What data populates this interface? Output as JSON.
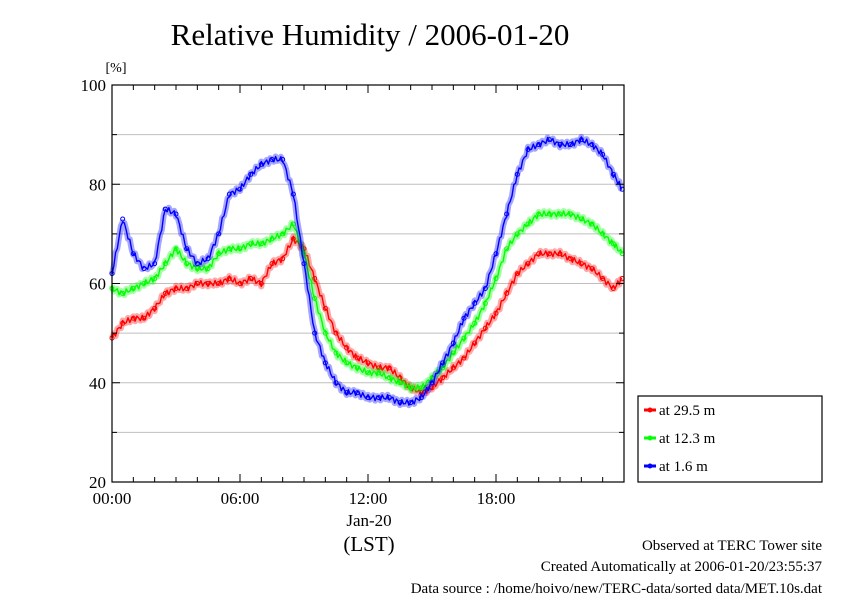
{
  "chart_data": {
    "type": "line",
    "title": "Relative Humidity / 2006-01-20",
    "ylabel_unit": "[%]",
    "xlabel": "(LST)",
    "x_date_label": "Jan-20",
    "xlim": [
      "00:00",
      "24:00"
    ],
    "ylim": [
      20,
      100
    ],
    "x_ticks": [
      {
        "label": "00:00",
        "hour": 0
      },
      {
        "label": "06:00",
        "hour": 6
      },
      {
        "label": "12:00",
        "hour": 12
      },
      {
        "label": "18:00",
        "hour": 18
      }
    ],
    "y_ticks": [
      20,
      40,
      60,
      80,
      100
    ],
    "grid": true,
    "legend_position": "right, lower",
    "x": [
      "00:00",
      "00:30",
      "01:00",
      "01:30",
      "02:00",
      "02:30",
      "03:00",
      "03:30",
      "04:00",
      "04:30",
      "05:00",
      "05:30",
      "06:00",
      "06:30",
      "07:00",
      "07:30",
      "08:00",
      "08:30",
      "09:00",
      "09:30",
      "10:00",
      "10:30",
      "11:00",
      "11:30",
      "12:00",
      "12:30",
      "13:00",
      "13:30",
      "14:00",
      "14:30",
      "15:00",
      "15:30",
      "16:00",
      "16:30",
      "17:00",
      "17:30",
      "18:00",
      "18:30",
      "19:00",
      "19:30",
      "20:00",
      "20:30",
      "21:00",
      "21:30",
      "22:00",
      "22:30",
      "23:00",
      "23:30",
      "23:55"
    ],
    "series": [
      {
        "name": "at 29.5 m",
        "color": "#ff0000",
        "values": [
          49,
          52,
          53,
          53,
          55,
          58,
          59,
          59,
          60,
          60,
          60,
          61,
          60,
          61,
          60,
          64,
          65,
          69,
          67,
          61,
          55,
          50,
          47,
          45,
          44,
          43,
          43,
          41,
          39,
          38,
          39,
          41,
          43,
          45,
          48,
          51,
          54,
          58,
          62,
          64,
          66,
          66,
          66,
          65,
          64,
          63,
          61,
          59,
          61
        ]
      },
      {
        "name": "at 12.3 m",
        "color": "#00ff00",
        "values": [
          59,
          58,
          59,
          60,
          61,
          64,
          67,
          64,
          63,
          63,
          66,
          67,
          67,
          68,
          68,
          69,
          70,
          72,
          66,
          57,
          50,
          46,
          44,
          43,
          42,
          42,
          41,
          40,
          39,
          39,
          41,
          43,
          46,
          49,
          52,
          56,
          61,
          67,
          70,
          72,
          74,
          74,
          74,
          74,
          73,
          72,
          70,
          68,
          66
        ]
      },
      {
        "name": "at 1.6 m",
        "color": "#0000ff",
        "values": [
          62,
          73,
          66,
          63,
          64,
          75,
          74,
          67,
          64,
          65,
          70,
          78,
          79,
          82,
          84,
          85,
          85,
          78,
          64,
          50,
          44,
          40,
          38,
          38,
          37,
          37,
          37,
          36,
          36,
          37,
          40,
          44,
          48,
          53,
          56,
          59,
          66,
          74,
          82,
          87,
          88,
          89,
          88,
          88,
          89,
          88,
          86,
          82,
          79
        ]
      }
    ]
  },
  "notes": {
    "site": "Observed at TERC Tower site",
    "created": "Created Automatically at 2006-01-20/23:55:37",
    "source": "Data source : /home/hoivo/new/TERC-data/sorted  data/MET.10s.dat"
  }
}
